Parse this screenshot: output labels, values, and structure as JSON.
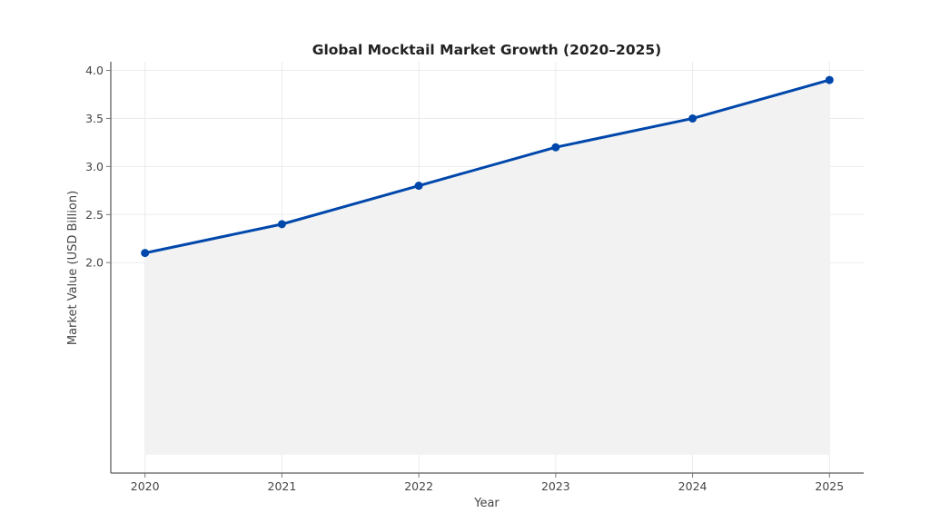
{
  "chart_data": {
    "type": "line",
    "title": "Global Mocktail Market Growth (2020–2025)",
    "xlabel": "Year",
    "ylabel": "Market Value (USD Billion)",
    "x": [
      2020,
      2021,
      2022,
      2023,
      2024,
      2025
    ],
    "x_tick_labels": [
      "2020",
      "2021",
      "2022",
      "2023",
      "2024",
      "2025"
    ],
    "series": [
      {
        "name": "Market Value",
        "values": [
          2.1,
          2.4,
          2.8,
          3.2,
          3.5,
          3.9
        ],
        "color": "#0047ab",
        "fill_to_zero": true,
        "fill_color": "#f2f2f2"
      }
    ],
    "y_ticks": [
      2.0,
      2.5,
      3.0,
      3.5,
      4.0
    ],
    "y_tick_labels": [
      "2.0",
      "2.5",
      "3.0",
      "3.5",
      "4.0"
    ],
    "xlim": [
      2019.75,
      2025.25
    ],
    "ylim": [
      -0.19,
      4.09
    ],
    "grid": true,
    "legend": "none"
  }
}
